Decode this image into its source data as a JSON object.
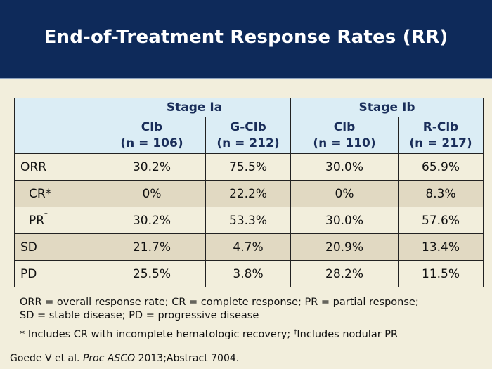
{
  "title": "End-of-Treatment Response Rates (RR)",
  "table": {
    "groups": [
      "Stage Ia",
      "Stage Ib"
    ],
    "columns": [
      {
        "name": "Clb",
        "n": "(n = 106)"
      },
      {
        "name": "G-Clb",
        "n": "(n = 212)"
      },
      {
        "name": "Clb",
        "n": "(n = 110)"
      },
      {
        "name": "R-Clb",
        "n": "(n = 217)"
      }
    ],
    "rows": [
      {
        "label": "ORR",
        "sup": "",
        "values": [
          "30.2%",
          "75.5%",
          "30.0%",
          "65.9%"
        ]
      },
      {
        "label": "CR*",
        "sup": "",
        "values": [
          "0%",
          "22.2%",
          "0%",
          "8.3%"
        ]
      },
      {
        "label": "PR",
        "sup": "†",
        "values": [
          "30.2%",
          "53.3%",
          "30.0%",
          "57.6%"
        ]
      },
      {
        "label": "SD",
        "sup": "",
        "values": [
          "21.7%",
          "4.7%",
          "20.9%",
          "13.4%"
        ]
      },
      {
        "label": "PD",
        "sup": "",
        "values": [
          "25.5%",
          "3.8%",
          "28.2%",
          "11.5%"
        ]
      }
    ]
  },
  "footnotes": {
    "abbrev_line1": "ORR = overall response rate; CR = complete response; PR = partial response;",
    "abbrev_line2": "SD = stable disease; PD = progressive disease",
    "note_a": "* Includes CR with incomplete hematologic recovery;",
    "note_b_sup": "†",
    "note_b": "Includes nodular PR"
  },
  "citation": {
    "authors": "Goede V et al.",
    "journal": "Proc ASCO",
    "rest": "2013;Abstract 7004."
  },
  "colors": {
    "header_bg": "#0e2a5a",
    "page_bg": "#f2eedc",
    "table_header_bg": "#dbedf5",
    "row_shade": "#e1d9c2"
  }
}
